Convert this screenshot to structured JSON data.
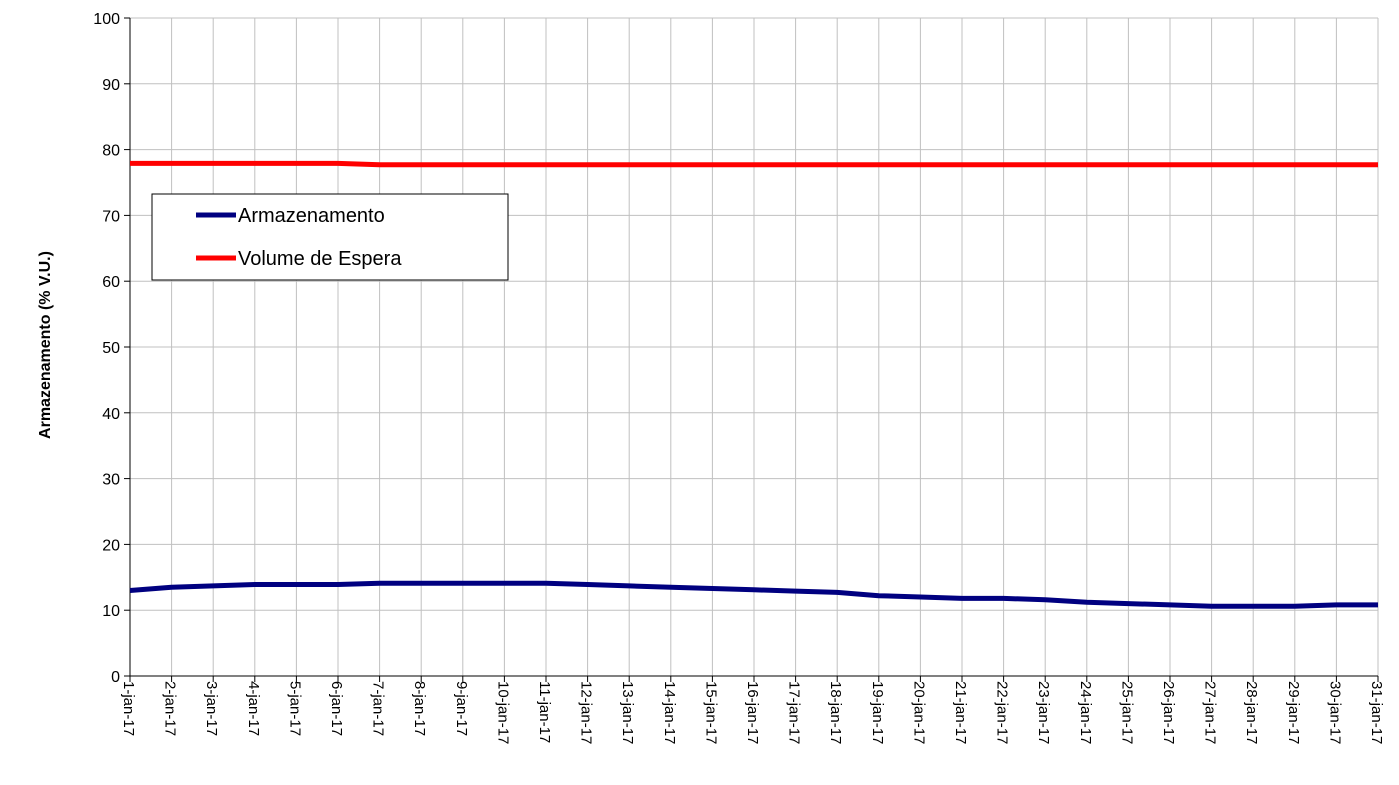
{
  "chart_data": {
    "type": "line",
    "title": "",
    "xlabel": "",
    "ylabel": "Armazenamento (% V.U.)",
    "ylim": [
      0,
      100
    ],
    "yticks": [
      "0",
      "10",
      "20",
      "30",
      "40",
      "50",
      "60",
      "70",
      "80",
      "90",
      "100"
    ],
    "grid": true,
    "legend_position": "upper-left",
    "x": [
      "1-jan-17",
      "2-jan-17",
      "3-jan-17",
      "4-jan-17",
      "5-jan-17",
      "6-jan-17",
      "7-jan-17",
      "8-jan-17",
      "9-jan-17",
      "10-jan-17",
      "11-jan-17",
      "12-jan-17",
      "13-jan-17",
      "14-jan-17",
      "15-jan-17",
      "16-jan-17",
      "17-jan-17",
      "18-jan-17",
      "19-jan-17",
      "20-jan-17",
      "21-jan-17",
      "22-jan-17",
      "23-jan-17",
      "24-jan-17",
      "25-jan-17",
      "26-jan-17",
      "27-jan-17",
      "28-jan-17",
      "29-jan-17",
      "30-jan-17",
      "31-jan-17"
    ],
    "series": [
      {
        "name": "Armazenamento",
        "color": "#000080",
        "values": [
          13.0,
          13.5,
          13.7,
          13.9,
          13.9,
          13.9,
          14.1,
          14.1,
          14.1,
          14.1,
          14.1,
          13.9,
          13.7,
          13.5,
          13.3,
          13.1,
          12.9,
          12.7,
          12.2,
          12.0,
          11.8,
          11.8,
          11.6,
          11.2,
          11.0,
          10.8,
          10.6,
          10.6,
          10.6,
          10.8,
          10.8
        ]
      },
      {
        "name": "Volume de Espera",
        "color": "#ff0000",
        "values": [
          77.9,
          77.9,
          77.9,
          77.9,
          77.9,
          77.9,
          77.7,
          77.7,
          77.7,
          77.7,
          77.7,
          77.7,
          77.7,
          77.7,
          77.7,
          77.7,
          77.7,
          77.7,
          77.7,
          77.7,
          77.7,
          77.7,
          77.7,
          77.7,
          77.7,
          77.7,
          77.7,
          77.7,
          77.7,
          77.7,
          77.7
        ]
      }
    ]
  }
}
